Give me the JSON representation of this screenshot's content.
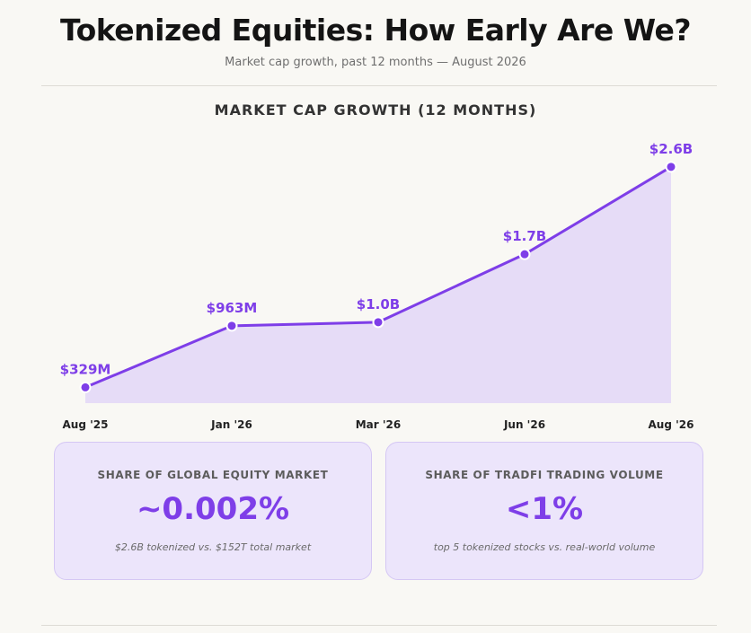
{
  "header": {
    "title": "Tokenized Equities: How Early Are We?",
    "subtitle": "Market cap growth, past 12 months — August 2026"
  },
  "chart_heading": "MARKET CAP GROWTH (12 MONTHS)",
  "colors": {
    "accent": "#7e3ee8",
    "area_fill": "#e6dcf7",
    "card_bg": "#ece5fb",
    "background": "#f9f8f4"
  },
  "chart_data": {
    "type": "area",
    "title": "MARKET CAP GROWTH (12 MONTHS)",
    "categories": [
      "Aug '25",
      "Jan '26",
      "Mar '26",
      "Jun '26",
      "Aug '26"
    ],
    "series": [
      {
        "values": [
          0.329,
          0.963,
          1.0,
          1.7,
          2.6
        ],
        "data_labels": [
          "$329M",
          "$963M",
          "$1.0B",
          "$1.7B",
          "$2.6B"
        ]
      }
    ],
    "xlabel": "",
    "ylabel": "",
    "grid": false,
    "legend": "none"
  },
  "stats": [
    {
      "label": "SHARE OF GLOBAL EQUITY MARKET",
      "value": "~0.002%",
      "note": "$2.6B tokenized vs. $152T total market"
    },
    {
      "label": "SHARE OF TRADFI TRADING VOLUME",
      "value": "<1%",
      "note": "top 5 tokenized stocks vs. real-world volume"
    }
  ]
}
